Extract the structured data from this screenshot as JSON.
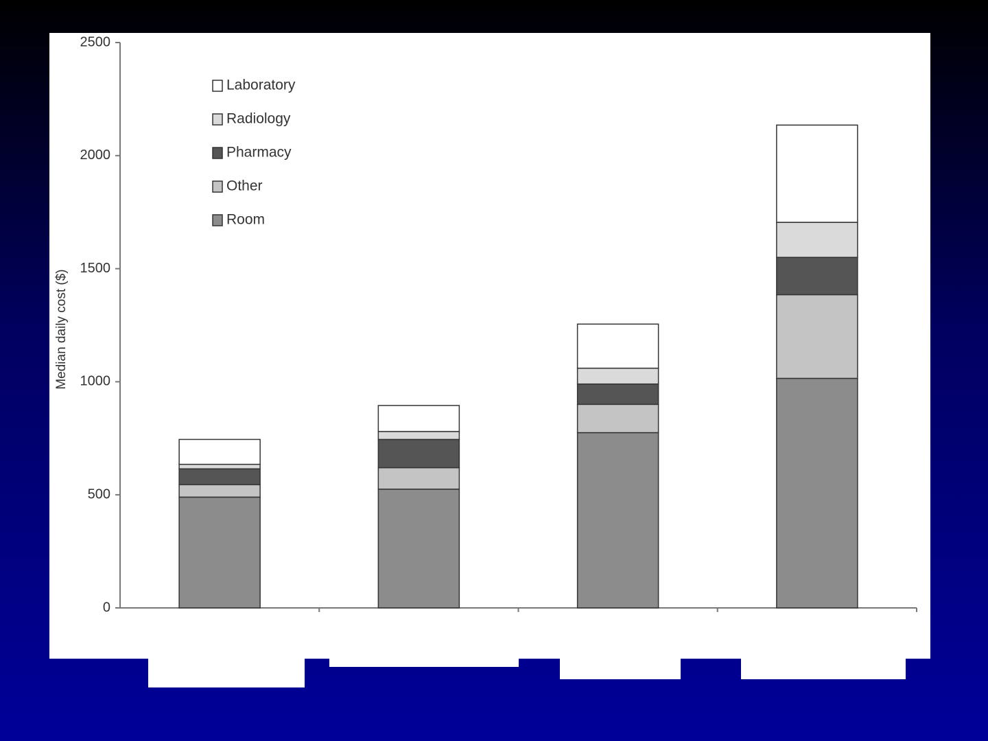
{
  "chart_data": {
    "type": "stacked_bar",
    "ylabel": "Median daily cost ($)",
    "categories": [
      null,
      null,
      null,
      null
    ],
    "series": [
      {
        "name": "Room",
        "color": "#8c8c8c",
        "values": [
          490,
          525,
          775,
          1015
        ]
      },
      {
        "name": "Other",
        "color": "#c4c4c4",
        "values": [
          55,
          95,
          125,
          370
        ]
      },
      {
        "name": "Pharmacy",
        "color": "#555555",
        "values": [
          70,
          125,
          90,
          165
        ]
      },
      {
        "name": "Radiology",
        "color": "#dadada",
        "values": [
          20,
          35,
          70,
          155
        ]
      },
      {
        "name": "Laboratory",
        "color": "#ffffff",
        "values": [
          110,
          115,
          195,
          430
        ]
      }
    ],
    "ylim": [
      0,
      2500
    ],
    "yticks": [
      0,
      500,
      1000,
      1500,
      2000,
      2500
    ],
    "grid": false,
    "legend": "upper left"
  }
}
